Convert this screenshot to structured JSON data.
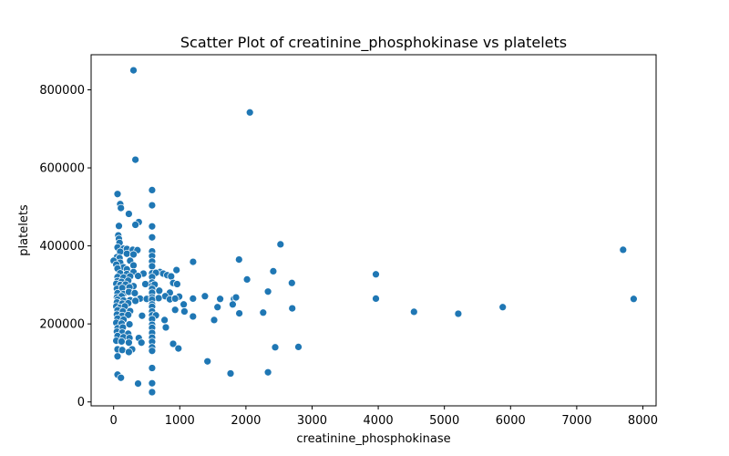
{
  "chart_data": {
    "type": "scatter",
    "title": "Scatter Plot of creatinine_phosphokinase vs platelets",
    "xlabel": "creatinine_phosphokinase",
    "ylabel": "platelets",
    "xlim": [
      -340,
      8200
    ],
    "ylim": [
      -10000,
      890000
    ],
    "xticks": [
      0,
      1000,
      2000,
      3000,
      4000,
      5000,
      6000,
      7000,
      8000
    ],
    "yticks": [
      0,
      200000,
      400000,
      600000,
      800000
    ],
    "ytick_labels": [
      "0",
      "200000",
      "400000",
      "600000",
      "800000"
    ],
    "grid": false,
    "legend": "none",
    "color": "#1f77b4",
    "points": [
      [
        300,
        850000
      ],
      [
        2060,
        742000
      ],
      [
        330,
        621000
      ],
      [
        60,
        533000
      ],
      [
        582,
        543000
      ],
      [
        582,
        504000
      ],
      [
        100,
        507000
      ],
      [
        110,
        497000
      ],
      [
        230,
        482000
      ],
      [
        380,
        461000
      ],
      [
        330,
        454000
      ],
      [
        582,
        450000
      ],
      [
        80,
        451000
      ],
      [
        582,
        422000
      ],
      [
        70,
        427000
      ],
      [
        80,
        418000
      ],
      [
        90,
        408000
      ],
      [
        2522,
        404000
      ],
      [
        60,
        396000
      ],
      [
        150,
        393000
      ],
      [
        200,
        392000
      ],
      [
        290,
        390000
      ],
      [
        7702,
        390000
      ],
      [
        360,
        389000
      ],
      [
        582,
        386000
      ],
      [
        100,
        385000
      ],
      [
        200,
        380000
      ],
      [
        300,
        378000
      ],
      [
        582,
        374000
      ],
      [
        50,
        371000
      ],
      [
        90,
        369000
      ],
      [
        1896,
        365000
      ],
      [
        0,
        362000
      ],
      [
        250,
        362000
      ],
      [
        582,
        360000
      ],
      [
        1202,
        359000
      ],
      [
        100,
        357000
      ],
      [
        40,
        352000
      ],
      [
        300,
        350000
      ],
      [
        150,
        345000
      ],
      [
        582,
        348000
      ],
      [
        60,
        342000
      ],
      [
        200,
        340000
      ],
      [
        2413,
        335000
      ],
      [
        300,
        333000
      ],
      [
        950,
        338000
      ],
      [
        700,
        333000
      ],
      [
        100,
        330000
      ],
      [
        200,
        328000
      ],
      [
        450,
        329000
      ],
      [
        582,
        330000
      ],
      [
        640,
        331000
      ],
      [
        750,
        329000
      ],
      [
        3964,
        327000
      ],
      [
        810,
        325000
      ],
      [
        60,
        320000
      ],
      [
        150,
        319000
      ],
      [
        250,
        322000
      ],
      [
        370,
        323000
      ],
      [
        582,
        320000
      ],
      [
        870,
        322000
      ],
      [
        2017,
        314000
      ],
      [
        60,
        310000
      ],
      [
        120,
        308000
      ],
      [
        220,
        311000
      ],
      [
        582,
        306000
      ],
      [
        2695,
        305000
      ],
      [
        900,
        305000
      ],
      [
        40,
        303000
      ],
      [
        100,
        300000
      ],
      [
        180,
        301000
      ],
      [
        300,
        297000
      ],
      [
        480,
        302000
      ],
      [
        582,
        298000
      ],
      [
        620,
        301000
      ],
      [
        960,
        302000
      ],
      [
        50,
        290000
      ],
      [
        130,
        292000
      ],
      [
        240,
        294000
      ],
      [
        582,
        290000
      ],
      [
        2334,
        283000
      ],
      [
        690,
        285000
      ],
      [
        850,
        280000
      ],
      [
        60,
        279000
      ],
      [
        150,
        277000
      ],
      [
        230,
        282000
      ],
      [
        320,
        279000
      ],
      [
        582,
        280000
      ],
      [
        780,
        271000
      ],
      [
        1380,
        271000
      ],
      [
        990,
        270000
      ],
      [
        50,
        268000
      ],
      [
        120,
        271000
      ],
      [
        400,
        265000
      ],
      [
        500,
        264000
      ],
      [
        582,
        268000
      ],
      [
        680,
        266000
      ],
      [
        1200,
        265000
      ],
      [
        1610,
        264000
      ],
      [
        1820,
        264000
      ],
      [
        1850,
        268000
      ],
      [
        3964,
        265000
      ],
      [
        7861,
        264000
      ],
      [
        60,
        262000
      ],
      [
        150,
        260000
      ],
      [
        250,
        261000
      ],
      [
        330,
        259000
      ],
      [
        582,
        262000
      ],
      [
        850,
        263000
      ],
      [
        930,
        265000
      ],
      [
        1060,
        250000
      ],
      [
        1800,
        250000
      ],
      [
        50,
        255000
      ],
      [
        130,
        252000
      ],
      [
        220,
        253000
      ],
      [
        582,
        250000
      ],
      [
        40,
        245000
      ],
      [
        100,
        242000
      ],
      [
        170,
        245000
      ],
      [
        582,
        244000
      ],
      [
        2700,
        240000
      ],
      [
        5882,
        243000
      ],
      [
        1570,
        243000
      ],
      [
        930,
        236000
      ],
      [
        60,
        235000
      ],
      [
        140,
        232000
      ],
      [
        250,
        233000
      ],
      [
        582,
        232000
      ],
      [
        4540,
        231000
      ],
      [
        1070,
        232000
      ],
      [
        2261,
        229000
      ],
      [
        1900,
        227000
      ],
      [
        5209,
        226000
      ],
      [
        50,
        224000
      ],
      [
        130,
        221000
      ],
      [
        220,
        223000
      ],
      [
        582,
        222000
      ],
      [
        640,
        222000
      ],
      [
        430,
        221000
      ],
      [
        1200,
        219000
      ],
      [
        60,
        214000
      ],
      [
        150,
        211000
      ],
      [
        582,
        212000
      ],
      [
        1520,
        210000
      ],
      [
        770,
        210000
      ],
      [
        40,
        203000
      ],
      [
        120,
        201000
      ],
      [
        240,
        199000
      ],
      [
        582,
        198000
      ],
      [
        60,
        189000
      ],
      [
        140,
        191000
      ],
      [
        582,
        190000
      ],
      [
        790,
        191000
      ],
      [
        50,
        180000
      ],
      [
        130,
        178000
      ],
      [
        220,
        175000
      ],
      [
        582,
        177000
      ],
      [
        60,
        169000
      ],
      [
        150,
        166000
      ],
      [
        240,
        164000
      ],
      [
        380,
        164000
      ],
      [
        582,
        165000
      ],
      [
        40,
        157000
      ],
      [
        120,
        155000
      ],
      [
        230,
        152000
      ],
      [
        420,
        152000
      ],
      [
        582,
        154000
      ],
      [
        900,
        149000
      ],
      [
        2794,
        141000
      ],
      [
        2442,
        140000
      ],
      [
        582,
        140000
      ],
      [
        980,
        137000
      ],
      [
        60,
        135000
      ],
      [
        130,
        133000
      ],
      [
        280,
        135000
      ],
      [
        582,
        131000
      ],
      [
        230,
        128000
      ],
      [
        60,
        117000
      ],
      [
        1419,
        104000
      ],
      [
        582,
        87000
      ],
      [
        1767,
        73000
      ],
      [
        2334,
        76000
      ],
      [
        60,
        70000
      ],
      [
        110,
        62000
      ],
      [
        370,
        47000
      ],
      [
        582,
        48000
      ],
      [
        582,
        25000
      ]
    ]
  }
}
